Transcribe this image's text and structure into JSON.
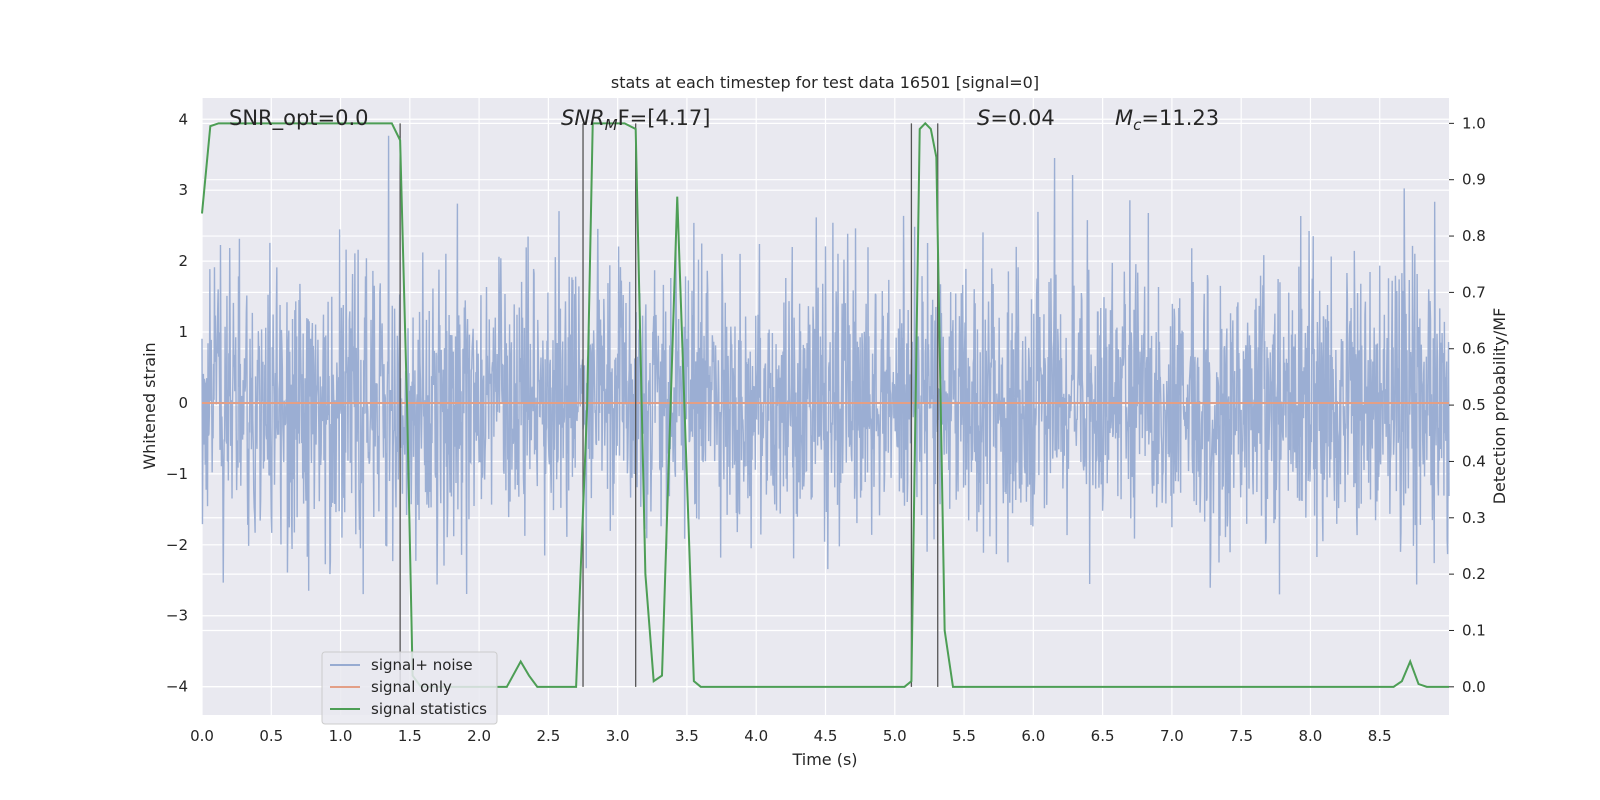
{
  "chart_data": {
    "type": "line",
    "title": "stats at each timestep for test data 16501 [signal=0]",
    "xlabel": "Time (s)",
    "ylabel": "Whitened strain",
    "y2label": "Detection probability/MF",
    "xlim": [
      0.0,
      9.0
    ],
    "ylim": [
      -4.4,
      4.3
    ],
    "y2lim": [
      -0.05,
      1.045
    ],
    "grid": true,
    "legend_position": "lower-left",
    "x_ticks": [
      "0.0",
      "0.5",
      "1.0",
      "1.5",
      "2.0",
      "2.5",
      "3.0",
      "3.5",
      "4.0",
      "4.5",
      "5.0",
      "5.5",
      "6.0",
      "6.5",
      "7.0",
      "7.5",
      "8.0",
      "8.5"
    ],
    "y_ticks": [
      "4",
      "3",
      "2",
      "1",
      "0",
      "−1",
      "−2",
      "−3",
      "−4"
    ],
    "y2_ticks": [
      "1.0",
      "0.9",
      "0.8",
      "0.7",
      "0.6",
      "0.5",
      "0.4",
      "0.3",
      "0.2",
      "0.1",
      "0.0"
    ],
    "annotations": {
      "snr_opt": "SNR_opt=0.0",
      "snr_mf_base": "SNR",
      "snr_mf_sub": "M",
      "snr_mf_rest": "F=[4.17]",
      "s_italic": "S",
      "s_value": "=0.04",
      "mc_italic": "M",
      "mc_sub": "c",
      "mc_value": "=11.23"
    },
    "vertical_lines_x": [
      1.43,
      2.75,
      3.13,
      5.12,
      5.31
    ],
    "series": [
      {
        "name": "signal+ noise",
        "color": "#97abd1",
        "axis": "left",
        "description": "whitened noise, std ~0.9, roughly range -4 to 3.9",
        "seed": 16501,
        "sample_rate": 300
      },
      {
        "name": "signal only",
        "color": "#e39f86",
        "axis": "left",
        "x": [
          0.0,
          9.0
        ],
        "y": [
          0.0,
          0.0
        ]
      },
      {
        "name": "signal statistics",
        "color": "#4d9e55",
        "axis": "right",
        "x": [
          0.0,
          0.06,
          0.12,
          1.37,
          1.43,
          1.48,
          1.52,
          1.58,
          2.2,
          2.3,
          2.36,
          2.42,
          2.48,
          2.7,
          2.78,
          2.82,
          2.88,
          3.05,
          3.13,
          3.2,
          3.26,
          3.32,
          3.43,
          3.55,
          3.6,
          3.65,
          3.7,
          5.07,
          5.12,
          5.18,
          5.22,
          5.26,
          5.3,
          5.36,
          5.42,
          5.5,
          7.8,
          8.6,
          8.66,
          8.72,
          8.78,
          8.84,
          8.9,
          9.0
        ],
        "y": [
          0.84,
          0.995,
          1.0,
          1.0,
          0.97,
          0.5,
          0.02,
          0.0,
          0.0,
          0.045,
          0.02,
          0.0,
          0.0,
          0.0,
          0.5,
          1.0,
          1.0,
          1.0,
          0.99,
          0.2,
          0.01,
          0.02,
          0.87,
          0.01,
          0.0,
          0.0,
          0.0,
          0.0,
          0.01,
          0.99,
          1.0,
          0.99,
          0.94,
          0.1,
          0.0,
          0.0,
          0.0,
          0.0,
          0.01,
          0.045,
          0.005,
          0.0,
          0.0,
          0.0
        ]
      }
    ]
  }
}
